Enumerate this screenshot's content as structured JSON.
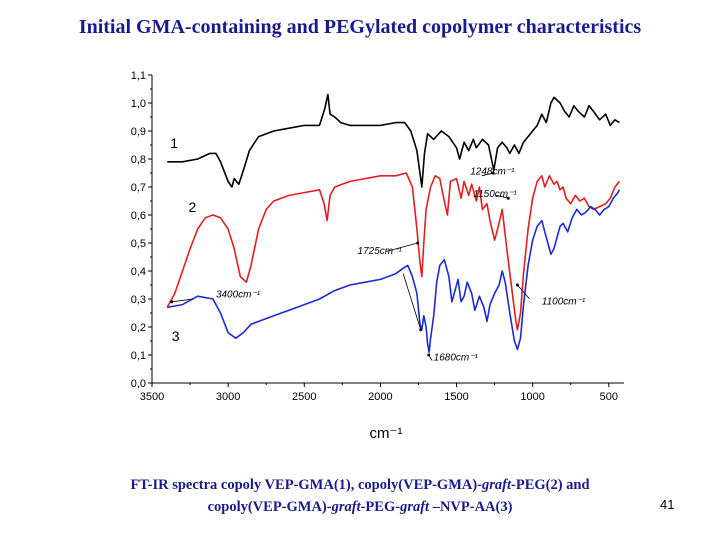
{
  "title": "Initial GMA-containing and PEGylated copolymer characteristics",
  "caption": {
    "line1_a": "FT-IR spectra copoly VEP-GMA(1), copoly(VEP-GMA)-",
    "line1_b": "graft",
    "line1_c": "-PEG(2) and",
    "line2_a": "copoly(VEP-GMA)-",
    "line2_b": "graft",
    "line2_c": "-PEG-",
    "line2_d": "graft",
    "line2_e": " –NVP-AA(3)"
  },
  "page_number": "41",
  "chart_data": {
    "type": "line",
    "xlabel": "cm⁻¹",
    "ylabel": "",
    "xlim": [
      3500,
      400
    ],
    "ylim": [
      0.0,
      1.1
    ],
    "x_ticks": [
      "3500",
      "3000",
      "2500",
      "2000",
      "1500",
      "1000",
      "500"
    ],
    "y_ticks": [
      "0,0",
      "0,1",
      "0,2",
      "0,3",
      "0,4",
      "0,5",
      "0,6",
      "0,7",
      "0,8",
      "0,9",
      "1,0",
      "1,1"
    ],
    "series": [
      {
        "name": "1",
        "color": "#000000",
        "points": [
          [
            3400,
            0.79
          ],
          [
            3300,
            0.79
          ],
          [
            3200,
            0.8
          ],
          [
            3120,
            0.82
          ],
          [
            3080,
            0.82
          ],
          [
            3050,
            0.79
          ],
          [
            3000,
            0.72
          ],
          [
            2975,
            0.7
          ],
          [
            2960,
            0.73
          ],
          [
            2930,
            0.71
          ],
          [
            2900,
            0.76
          ],
          [
            2860,
            0.83
          ],
          [
            2800,
            0.88
          ],
          [
            2700,
            0.9
          ],
          [
            2600,
            0.91
          ],
          [
            2500,
            0.92
          ],
          [
            2400,
            0.92
          ],
          [
            2365,
            0.98
          ],
          [
            2345,
            1.03
          ],
          [
            2330,
            0.96
          ],
          [
            2300,
            0.95
          ],
          [
            2260,
            0.93
          ],
          [
            2200,
            0.92
          ],
          [
            2100,
            0.92
          ],
          [
            2000,
            0.92
          ],
          [
            1900,
            0.93
          ],
          [
            1840,
            0.93
          ],
          [
            1800,
            0.9
          ],
          [
            1760,
            0.83
          ],
          [
            1728,
            0.7
          ],
          [
            1710,
            0.82
          ],
          [
            1690,
            0.89
          ],
          [
            1650,
            0.87
          ],
          [
            1600,
            0.9
          ],
          [
            1550,
            0.88
          ],
          [
            1500,
            0.84
          ],
          [
            1480,
            0.8
          ],
          [
            1450,
            0.86
          ],
          [
            1420,
            0.83
          ],
          [
            1390,
            0.87
          ],
          [
            1370,
            0.84
          ],
          [
            1330,
            0.87
          ],
          [
            1290,
            0.85
          ],
          [
            1255,
            0.76
          ],
          [
            1230,
            0.84
          ],
          [
            1200,
            0.86
          ],
          [
            1170,
            0.84
          ],
          [
            1150,
            0.82
          ],
          [
            1120,
            0.85
          ],
          [
            1090,
            0.82
          ],
          [
            1060,
            0.86
          ],
          [
            1030,
            0.88
          ],
          [
            1000,
            0.9
          ],
          [
            970,
            0.92
          ],
          [
            940,
            0.96
          ],
          [
            910,
            0.93
          ],
          [
            880,
            1.0
          ],
          [
            860,
            1.02
          ],
          [
            820,
            1.0
          ],
          [
            790,
            0.97
          ],
          [
            760,
            0.95
          ],
          [
            730,
            0.99
          ],
          [
            700,
            0.97
          ],
          [
            660,
            0.95
          ],
          [
            630,
            0.99
          ],
          [
            600,
            0.97
          ],
          [
            560,
            0.94
          ],
          [
            520,
            0.96
          ],
          [
            490,
            0.92
          ],
          [
            460,
            0.94
          ],
          [
            430,
            0.93
          ]
        ]
      },
      {
        "name": "2",
        "color": "#e41e1e",
        "points": [
          [
            3400,
            0.27
          ],
          [
            3350,
            0.32
          ],
          [
            3300,
            0.4
          ],
          [
            3250,
            0.48
          ],
          [
            3200,
            0.55
          ],
          [
            3150,
            0.59
          ],
          [
            3100,
            0.6
          ],
          [
            3050,
            0.59
          ],
          [
            3000,
            0.55
          ],
          [
            2960,
            0.48
          ],
          [
            2920,
            0.38
          ],
          [
            2880,
            0.36
          ],
          [
            2850,
            0.42
          ],
          [
            2800,
            0.55
          ],
          [
            2750,
            0.62
          ],
          [
            2700,
            0.65
          ],
          [
            2600,
            0.67
          ],
          [
            2500,
            0.68
          ],
          [
            2400,
            0.69
          ],
          [
            2370,
            0.64
          ],
          [
            2350,
            0.58
          ],
          [
            2330,
            0.67
          ],
          [
            2300,
            0.7
          ],
          [
            2200,
            0.72
          ],
          [
            2100,
            0.73
          ],
          [
            2000,
            0.74
          ],
          [
            1900,
            0.74
          ],
          [
            1830,
            0.75
          ],
          [
            1790,
            0.7
          ],
          [
            1760,
            0.55
          ],
          [
            1740,
            0.43
          ],
          [
            1728,
            0.38
          ],
          [
            1715,
            0.5
          ],
          [
            1700,
            0.62
          ],
          [
            1670,
            0.7
          ],
          [
            1640,
            0.74
          ],
          [
            1610,
            0.73
          ],
          [
            1580,
            0.65
          ],
          [
            1560,
            0.6
          ],
          [
            1540,
            0.72
          ],
          [
            1500,
            0.73
          ],
          [
            1470,
            0.66
          ],
          [
            1450,
            0.72
          ],
          [
            1420,
            0.67
          ],
          [
            1400,
            0.71
          ],
          [
            1370,
            0.65
          ],
          [
            1350,
            0.7
          ],
          [
            1330,
            0.62
          ],
          [
            1300,
            0.64
          ],
          [
            1280,
            0.58
          ],
          [
            1250,
            0.51
          ],
          [
            1230,
            0.55
          ],
          [
            1200,
            0.62
          ],
          [
            1170,
            0.48
          ],
          [
            1140,
            0.35
          ],
          [
            1110,
            0.22
          ],
          [
            1100,
            0.19
          ],
          [
            1080,
            0.25
          ],
          [
            1060,
            0.39
          ],
          [
            1030,
            0.55
          ],
          [
            1000,
            0.66
          ],
          [
            970,
            0.72
          ],
          [
            940,
            0.74
          ],
          [
            920,
            0.7
          ],
          [
            890,
            0.74
          ],
          [
            860,
            0.71
          ],
          [
            840,
            0.72
          ],
          [
            820,
            0.69
          ],
          [
            800,
            0.7
          ],
          [
            780,
            0.66
          ],
          [
            750,
            0.64
          ],
          [
            720,
            0.67
          ],
          [
            690,
            0.65
          ],
          [
            660,
            0.66
          ],
          [
            630,
            0.63
          ],
          [
            600,
            0.62
          ],
          [
            560,
            0.63
          ],
          [
            520,
            0.64
          ],
          [
            490,
            0.66
          ],
          [
            460,
            0.7
          ],
          [
            430,
            0.72
          ]
        ]
      },
      {
        "name": "3",
        "color": "#1a2ad6",
        "points": [
          [
            3400,
            0.27
          ],
          [
            3300,
            0.28
          ],
          [
            3200,
            0.31
          ],
          [
            3100,
            0.3
          ],
          [
            3050,
            0.25
          ],
          [
            3000,
            0.18
          ],
          [
            2950,
            0.16
          ],
          [
            2900,
            0.18
          ],
          [
            2850,
            0.21
          ],
          [
            2800,
            0.22
          ],
          [
            2700,
            0.24
          ],
          [
            2600,
            0.26
          ],
          [
            2500,
            0.28
          ],
          [
            2400,
            0.3
          ],
          [
            2300,
            0.33
          ],
          [
            2200,
            0.35
          ],
          [
            2100,
            0.36
          ],
          [
            2000,
            0.37
          ],
          [
            1900,
            0.39
          ],
          [
            1850,
            0.41
          ],
          [
            1820,
            0.42
          ],
          [
            1790,
            0.38
          ],
          [
            1760,
            0.32
          ],
          [
            1740,
            0.21
          ],
          [
            1728,
            0.19
          ],
          [
            1715,
            0.24
          ],
          [
            1700,
            0.2
          ],
          [
            1690,
            0.14
          ],
          [
            1680,
            0.11
          ],
          [
            1670,
            0.16
          ],
          [
            1650,
            0.24
          ],
          [
            1630,
            0.36
          ],
          [
            1610,
            0.42
          ],
          [
            1580,
            0.44
          ],
          [
            1550,
            0.38
          ],
          [
            1530,
            0.29
          ],
          [
            1510,
            0.33
          ],
          [
            1490,
            0.37
          ],
          [
            1470,
            0.29
          ],
          [
            1450,
            0.31
          ],
          [
            1430,
            0.36
          ],
          [
            1400,
            0.32
          ],
          [
            1380,
            0.26
          ],
          [
            1350,
            0.31
          ],
          [
            1320,
            0.27
          ],
          [
            1300,
            0.22
          ],
          [
            1280,
            0.28
          ],
          [
            1250,
            0.32
          ],
          [
            1220,
            0.35
          ],
          [
            1200,
            0.4
          ],
          [
            1180,
            0.36
          ],
          [
            1150,
            0.25
          ],
          [
            1120,
            0.15
          ],
          [
            1100,
            0.12
          ],
          [
            1080,
            0.16
          ],
          [
            1060,
            0.28
          ],
          [
            1030,
            0.42
          ],
          [
            1000,
            0.51
          ],
          [
            970,
            0.56
          ],
          [
            940,
            0.58
          ],
          [
            910,
            0.52
          ],
          [
            880,
            0.46
          ],
          [
            860,
            0.48
          ],
          [
            840,
            0.52
          ],
          [
            820,
            0.56
          ],
          [
            800,
            0.57
          ],
          [
            770,
            0.54
          ],
          [
            740,
            0.59
          ],
          [
            710,
            0.62
          ],
          [
            680,
            0.6
          ],
          [
            650,
            0.61
          ],
          [
            620,
            0.63
          ],
          [
            590,
            0.62
          ],
          [
            560,
            0.6
          ],
          [
            530,
            0.62
          ],
          [
            500,
            0.63
          ],
          [
            470,
            0.66
          ],
          [
            440,
            0.68
          ],
          [
            430,
            0.69
          ]
        ]
      }
    ],
    "curve_labels": [
      {
        "text": "1",
        "x": 3380,
        "y": 0.84
      },
      {
        "text": "2",
        "x": 3260,
        "y": 0.61
      },
      {
        "text": "3",
        "x": 3370,
        "y": 0.15
      }
    ],
    "annotations": [
      {
        "text": "1248cm⁻¹",
        "x": 1410,
        "y": 0.745,
        "ax": 1260,
        "ay": 0.75,
        "tx": 1335,
        "ty": 0.74
      },
      {
        "text": "1150cm⁻¹",
        "x": 1390,
        "y": 0.665,
        "ax": 1160,
        "ay": 0.66,
        "tx": 1240,
        "ty": 0.67
      },
      {
        "text": "1725cm⁻¹",
        "x": 2150,
        "y": 0.46,
        "ax": 1755,
        "ay": 0.5,
        "tx": 1960,
        "ty": 0.47
      },
      {
        "text": "3400cm⁻¹",
        "x": 3080,
        "y": 0.305,
        "ax": 3370,
        "ay": 0.29,
        "tx": 3230,
        "ty": 0.3
      },
      {
        "text": "1100cm⁻¹",
        "x": 940,
        "y": 0.28,
        "ax": 1100,
        "ay": 0.35,
        "tx": 1020,
        "ty": 0.3
      },
      {
        "text": "1680cm⁻¹",
        "x": 1650,
        "y": 0.08,
        "ax": 1682,
        "ay": 0.1,
        "tx": 1660,
        "ty": 0.08
      },
      {
        "text": "",
        "x": 0,
        "y": 0,
        "ax": 1735,
        "ay": 0.19,
        "tx": 1850,
        "ty": 0.39
      }
    ]
  }
}
